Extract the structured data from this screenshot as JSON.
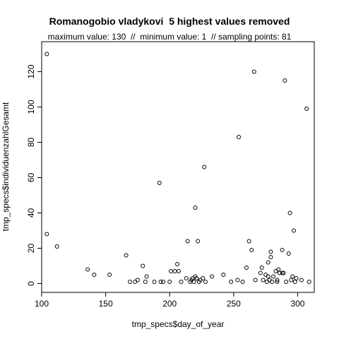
{
  "chart_data": {
    "type": "scatter",
    "title": "Romanogobio vladykovi  5 highest values removed",
    "subtitle": "maximum value: 130  //  minimum value: 1  // sampling points: 81",
    "xlabel": "tmp_specs$day_of_year",
    "ylabel": "tmp_specs$individuenzahlGesamt",
    "xlim": [
      100,
      313
    ],
    "ylim": [
      -5,
      137
    ],
    "xticks": [
      100,
      150,
      200,
      250,
      300
    ],
    "yticks": [
      0,
      20,
      40,
      60,
      80,
      100,
      120
    ],
    "grid": false,
    "points": [
      [
        104,
        130
      ],
      [
        104,
        28
      ],
      [
        112,
        21
      ],
      [
        136,
        8
      ],
      [
        141,
        5
      ],
      [
        153,
        5
      ],
      [
        166,
        16
      ],
      [
        169,
        1
      ],
      [
        173,
        1
      ],
      [
        175,
        2
      ],
      [
        179,
        10
      ],
      [
        181,
        1
      ],
      [
        182,
        4
      ],
      [
        188,
        1
      ],
      [
        192,
        57
      ],
      [
        193,
        1
      ],
      [
        195,
        1
      ],
      [
        200,
        1
      ],
      [
        201,
        7
      ],
      [
        204,
        7
      ],
      [
        206,
        11
      ],
      [
        207,
        7
      ],
      [
        209,
        1
      ],
      [
        213,
        3
      ],
      [
        214,
        24
      ],
      [
        216,
        1
      ],
      [
        217,
        2
      ],
      [
        218,
        3
      ],
      [
        219,
        1
      ],
      [
        220,
        43
      ],
      [
        220,
        4
      ],
      [
        221,
        3
      ],
      [
        222,
        24
      ],
      [
        223,
        1
      ],
      [
        224,
        2
      ],
      [
        226,
        3
      ],
      [
        227,
        66
      ],
      [
        228,
        1
      ],
      [
        233,
        4
      ],
      [
        242,
        5
      ],
      [
        248,
        1
      ],
      [
        253,
        2
      ],
      [
        254,
        83
      ],
      [
        257,
        1
      ],
      [
        260,
        9
      ],
      [
        262,
        24
      ],
      [
        264,
        19
      ],
      [
        266,
        120
      ],
      [
        267,
        2
      ],
      [
        271,
        6
      ],
      [
        272,
        9
      ],
      [
        273,
        2
      ],
      [
        275,
        5
      ],
      [
        276,
        1
      ],
      [
        277,
        4
      ],
      [
        277,
        12
      ],
      [
        278,
        2
      ],
      [
        279,
        18
      ],
      [
        279,
        15
      ],
      [
        280,
        1
      ],
      [
        281,
        4
      ],
      [
        283,
        7
      ],
      [
        284,
        2
      ],
      [
        284,
        1
      ],
      [
        285,
        8
      ],
      [
        286,
        6
      ],
      [
        288,
        19
      ],
      [
        288,
        6
      ],
      [
        289,
        6
      ],
      [
        290,
        115
      ],
      [
        291,
        1
      ],
      [
        293,
        17
      ],
      [
        294,
        40
      ],
      [
        295,
        2
      ],
      [
        296,
        4
      ],
      [
        297,
        30
      ],
      [
        298,
        1
      ],
      [
        299,
        3
      ],
      [
        303,
        2
      ],
      [
        307,
        99
      ],
      [
        309,
        1
      ]
    ]
  }
}
